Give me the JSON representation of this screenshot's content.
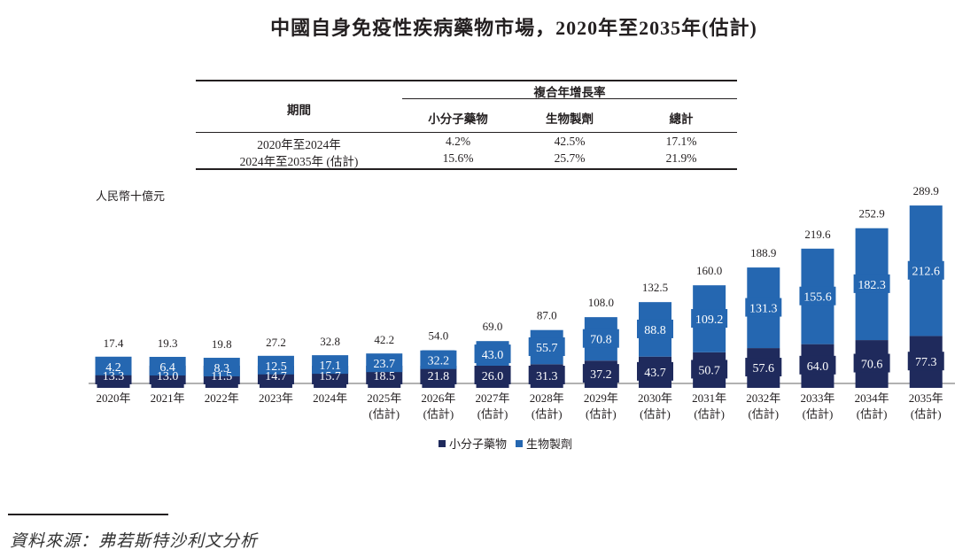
{
  "title": "中國自身免疫性疾病藥物市場，2020年至2035年(估計)",
  "cagr_table": {
    "period_header": "期間",
    "group_header": "複合年增長率",
    "columns": [
      "小分子藥物",
      "生物製劑",
      "總計"
    ],
    "rows": [
      {
        "period": "2020年至2024年",
        "values": [
          "4.2%",
          "42.5%",
          "17.1%"
        ]
      },
      {
        "period": "2024年至2035年 (估計)",
        "values": [
          "15.6%",
          "25.7%",
          "21.9%"
        ]
      }
    ]
  },
  "colors": {
    "small_molecule": "#1f2a5c",
    "biologics": "#2567b1",
    "axis": "#999999"
  },
  "source": "資料來源：弗若斯特沙利文分析",
  "chart_data": {
    "type": "bar",
    "stacked": true,
    "title": "中國自身免疫性疾病藥物市場，2020年至2035年(估計)",
    "ylabel": "人民幣十億元",
    "xlabel": "",
    "categories": [
      [
        "2020年",
        ""
      ],
      [
        "2021年",
        ""
      ],
      [
        "2022年",
        ""
      ],
      [
        "2023年",
        ""
      ],
      [
        "2024年",
        ""
      ],
      [
        "2025年",
        "(估計)"
      ],
      [
        "2026年",
        "(估計)"
      ],
      [
        "2027年",
        "(估計)"
      ],
      [
        "2028年",
        "(估計)"
      ],
      [
        "2029年",
        "(估計)"
      ],
      [
        "2030年",
        "(估計)"
      ],
      [
        "2031年",
        "(估計)"
      ],
      [
        "2032年",
        "(估計)"
      ],
      [
        "2033年",
        "(估計)"
      ],
      [
        "2034年",
        "(估計)"
      ],
      [
        "2035年",
        "(估計)"
      ]
    ],
    "series": [
      {
        "name": "小分子藥物",
        "values": [
          13.3,
          13.0,
          11.5,
          14.7,
          15.7,
          18.5,
          21.8,
          26.0,
          31.3,
          37.2,
          43.7,
          50.7,
          57.6,
          64.0,
          70.6,
          77.3
        ]
      },
      {
        "name": "生物製劑",
        "values": [
          4.2,
          6.4,
          8.3,
          12.5,
          17.1,
          23.7,
          32.2,
          43.0,
          55.7,
          70.8,
          88.8,
          109.2,
          131.3,
          155.6,
          182.3,
          212.6
        ]
      }
    ],
    "totals": [
      17.4,
      19.3,
      19.8,
      27.2,
      32.8,
      42.2,
      54.0,
      69.0,
      87.0,
      108.0,
      132.5,
      160.0,
      188.9,
      219.6,
      252.9,
      289.9
    ],
    "ylim": [
      0,
      290
    ],
    "grid": false,
    "legend": "bottom-center"
  }
}
